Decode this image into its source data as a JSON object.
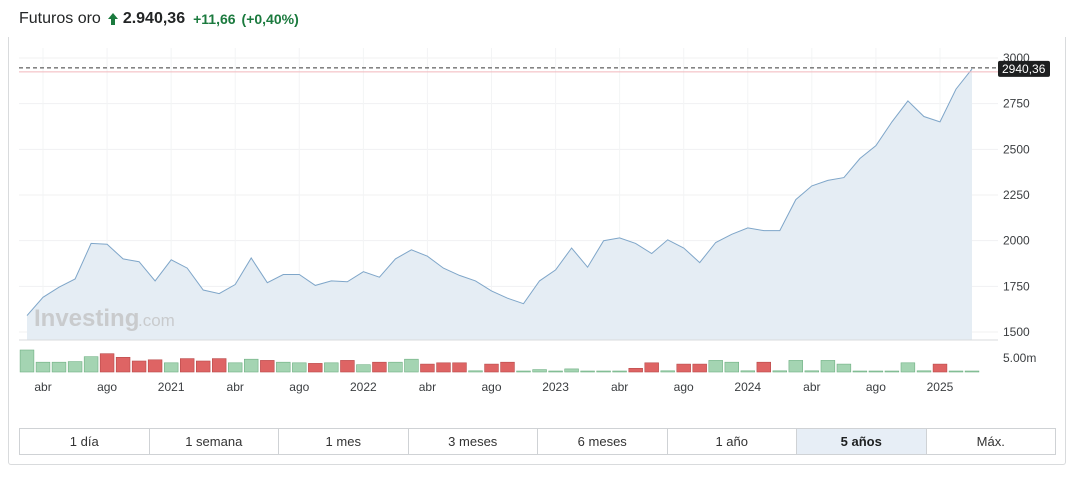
{
  "header": {
    "title": "Futuros oro",
    "price": "2.940,36",
    "change": "+11,66",
    "change_pct": "(+0,40%)",
    "up_color": "#1b7a3e"
  },
  "watermark": {
    "brand": "Investing",
    "suffix": ".com"
  },
  "colors": {
    "line": "#7fa6c9",
    "area": "#e5edf4",
    "volume_up": "#a4d4b2",
    "volume_down": "#de6464",
    "price_line": "#b00020",
    "price_badge": "#1d1f20"
  },
  "chart_data": {
    "type": "area",
    "title": "",
    "xlabel": "",
    "ylabel": "",
    "ylim": [
      1450,
      3000
    ],
    "yticks": [
      1500,
      1750,
      2000,
      2250,
      2500,
      2750,
      3000
    ],
    "current_price_label": "2940,36",
    "current_price": 2940.36,
    "volume_axis_label": "5.00m",
    "volume_axis_value": 5000000,
    "grid": true,
    "x_tick_labels": [
      {
        "label": "abr",
        "index": 1
      },
      {
        "label": "ago",
        "index": 5
      },
      {
        "label": "2021",
        "index": 9
      },
      {
        "label": "abr",
        "index": 13
      },
      {
        "label": "ago",
        "index": 17
      },
      {
        "label": "2022",
        "index": 21
      },
      {
        "label": "abr",
        "index": 25
      },
      {
        "label": "ago",
        "index": 29
      },
      {
        "label": "2023",
        "index": 33
      },
      {
        "label": "abr",
        "index": 37
      },
      {
        "label": "ago",
        "index": 41
      },
      {
        "label": "2024",
        "index": 45
      },
      {
        "label": "abr",
        "index": 49
      },
      {
        "label": "ago",
        "index": 53
      },
      {
        "label": "2025",
        "index": 57
      }
    ],
    "series": [
      {
        "values": [
          1590,
          1690,
          1745,
          1790,
          1985,
          1980,
          1900,
          1885,
          1780,
          1895,
          1850,
          1730,
          1710,
          1760,
          1905,
          1770,
          1815,
          1815,
          1755,
          1780,
          1775,
          1830,
          1800,
          1900,
          1950,
          1915,
          1850,
          1810,
          1780,
          1725,
          1685,
          1655,
          1780,
          1840,
          1960,
          1855,
          2000,
          2015,
          1985,
          1930,
          2005,
          1960,
          1880,
          1990,
          2035,
          2070,
          2055,
          2055,
          2225,
          2300,
          2330,
          2345,
          2450,
          2520,
          2650,
          2765,
          2680,
          2650,
          2830,
          2940.36
        ]
      },
      {
        "values": [
          3.6,
          1.6,
          1.6,
          1.7,
          2.5,
          3.0,
          2.4,
          1.8,
          2.0,
          1.5,
          2.2,
          1.8,
          2.2,
          1.5,
          2.1,
          1.9,
          1.6,
          1.5,
          1.4,
          1.5,
          1.9,
          1.2,
          1.6,
          1.6,
          2.1,
          1.3,
          1.5,
          1.5,
          0.2,
          1.3,
          1.6,
          0.1,
          0.4,
          0.1,
          0.5,
          0.1,
          0.1,
          0.1,
          0.6,
          1.5,
          0.2,
          1.3,
          1.3,
          1.9,
          1.6,
          0.2,
          1.6,
          0.2,
          1.9,
          0.2,
          1.9,
          1.3,
          0.1,
          0.1,
          0.1,
          1.5,
          0.2,
          1.3,
          0.1,
          0.1
        ],
        "direction": [
          "up",
          "up",
          "up",
          "up",
          "up",
          "down",
          "down",
          "down",
          "down",
          "up",
          "down",
          "down",
          "down",
          "up",
          "up",
          "down",
          "up",
          "up",
          "down",
          "up",
          "down",
          "up",
          "down",
          "up",
          "up",
          "down",
          "down",
          "down",
          "up",
          "down",
          "down",
          "up",
          "up",
          "up",
          "up",
          "up",
          "up",
          "up",
          "down",
          "down",
          "up",
          "down",
          "down",
          "up",
          "up",
          "up",
          "down",
          "up",
          "up",
          "up",
          "up",
          "up",
          "up",
          "up",
          "up",
          "up",
          "up",
          "down",
          "up",
          "up"
        ]
      }
    ]
  },
  "range_buttons": [
    "1 día",
    "1 semana",
    "1 mes",
    "3 meses",
    "6 meses",
    "1 año",
    "5 años",
    "Máx."
  ],
  "active_range": 6
}
